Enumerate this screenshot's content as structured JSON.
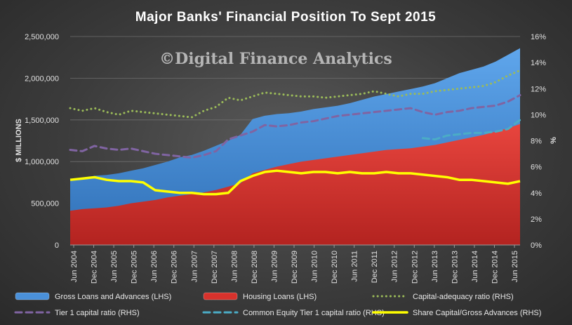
{
  "title": "Major Banks' Financial Position To Sept 2015",
  "watermark": "©Digital Finance Analytics",
  "chart_data": {
    "type": "area",
    "title": "Major Banks' Financial Position To Sept 2015",
    "ylabel_left": "$ MILLIONS",
    "ylabel_right": "%",
    "ylim_left": [
      0,
      2500000
    ],
    "ylim_right": [
      0,
      16
    ],
    "yticks_left": [
      "0",
      "500,000",
      "1,000,000",
      "1,500,000",
      "2,000,000",
      "2,500,000"
    ],
    "yticks_right": [
      "0%",
      "2%",
      "4%",
      "6%",
      "8%",
      "10%",
      "12%",
      "14%",
      "16%"
    ],
    "x_tick_labels": [
      "Jun 2004",
      "Dec 2004",
      "Jun 2005",
      "Dec 2005",
      "Jun 2006",
      "Dec 2006",
      "Jun 2007",
      "Dec 2007",
      "Jun 2008",
      "Dec 2008",
      "Jun 2009",
      "Dec 2009",
      "Jun 2010",
      "Dec 2010",
      "Jun 2011",
      "Dec 2011",
      "Jun 2012",
      "Dec 2012",
      "Jun 2013",
      "Dec 2013",
      "Jun 2014",
      "Dec 2014",
      "Jun 2015"
    ],
    "legend_position": "bottom",
    "series": [
      {
        "name": "Gross Loans and Advances (LHS)",
        "axis": "left",
        "style": "area",
        "color": "#4a90d9",
        "values": [
          770000,
          790000,
          830000,
          840000,
          860000,
          890000,
          920000,
          960000,
          1000000,
          1050000,
          1080000,
          1130000,
          1190000,
          1250000,
          1320000,
          1510000,
          1550000,
          1570000,
          1580000,
          1600000,
          1630000,
          1650000,
          1670000,
          1700000,
          1740000,
          1780000,
          1810000,
          1840000,
          1870000,
          1900000,
          1940000,
          2000000,
          2060000,
          2100000,
          2140000,
          2200000,
          2280000,
          2360000
        ]
      },
      {
        "name": "Housing Loans (LHS)",
        "axis": "left",
        "style": "area",
        "color": "#d8322c",
        "values": [
          410000,
          430000,
          440000,
          450000,
          470000,
          500000,
          520000,
          540000,
          570000,
          590000,
          610000,
          630000,
          660000,
          700000,
          740000,
          860000,
          900000,
          940000,
          970000,
          1000000,
          1020000,
          1040000,
          1060000,
          1080000,
          1100000,
          1120000,
          1140000,
          1150000,
          1160000,
          1180000,
          1200000,
          1230000,
          1260000,
          1290000,
          1320000,
          1360000,
          1400000,
          1450000
        ]
      },
      {
        "name": "Capital-adequacy ratio (RHS)",
        "axis": "right",
        "style": "dotted",
        "color": "#9bbb59",
        "values": [
          10.5,
          10.3,
          10.5,
          10.2,
          10.0,
          10.3,
          10.2,
          10.1,
          10.0,
          9.9,
          9.8,
          10.3,
          10.6,
          11.3,
          11.1,
          11.4,
          11.7,
          11.6,
          11.5,
          11.4,
          11.4,
          11.3,
          11.4,
          11.5,
          11.6,
          11.8,
          11.6,
          11.4,
          11.6,
          11.6,
          11.8,
          11.9,
          12.0,
          12.1,
          12.2,
          12.5,
          13.0,
          13.4
        ]
      },
      {
        "name": "Tier 1 capital ratio (RHS)",
        "axis": "right",
        "style": "dashed",
        "color": "#8064a2",
        "values": [
          7.3,
          7.2,
          7.6,
          7.4,
          7.3,
          7.4,
          7.2,
          7.0,
          6.9,
          6.8,
          6.7,
          6.9,
          7.2,
          8.1,
          8.4,
          8.7,
          9.2,
          9.1,
          9.2,
          9.4,
          9.5,
          9.7,
          9.9,
          10.0,
          10.1,
          10.2,
          10.3,
          10.4,
          10.5,
          10.2,
          10.0,
          10.2,
          10.3,
          10.5,
          10.6,
          10.7,
          11.0,
          11.5
        ]
      },
      {
        "name": "Common Equity Tier 1 capital ratio (RHS)",
        "axis": "right",
        "style": "dashed",
        "color": "#4bacc6",
        "values": [
          null,
          null,
          null,
          null,
          null,
          null,
          null,
          null,
          null,
          null,
          null,
          null,
          null,
          null,
          null,
          null,
          null,
          null,
          null,
          null,
          null,
          null,
          null,
          null,
          null,
          null,
          null,
          null,
          null,
          8.2,
          8.1,
          8.4,
          8.5,
          8.6,
          8.6,
          8.7,
          8.9,
          9.6
        ]
      },
      {
        "name": "Share Capital/Gross Advances (RHS)",
        "axis": "right",
        "style": "solid",
        "color": "#ffff00",
        "values": [
          5.0,
          5.1,
          5.2,
          5.0,
          4.9,
          4.9,
          4.8,
          4.2,
          4.1,
          4.0,
          4.0,
          3.9,
          3.9,
          4.0,
          4.9,
          5.3,
          5.6,
          5.7,
          5.6,
          5.5,
          5.6,
          5.6,
          5.5,
          5.6,
          5.5,
          5.5,
          5.6,
          5.5,
          5.5,
          5.4,
          5.3,
          5.2,
          5.0,
          5.0,
          4.9,
          4.8,
          4.7,
          4.9
        ]
      }
    ]
  }
}
